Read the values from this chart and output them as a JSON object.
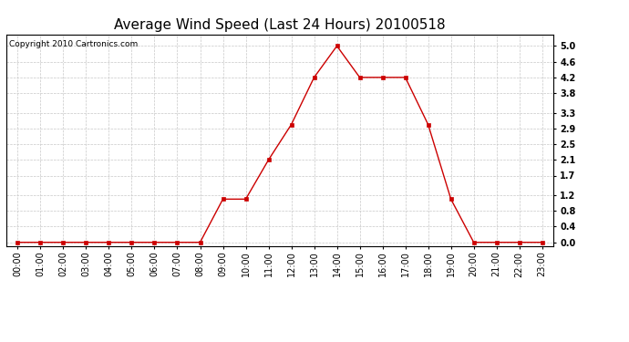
{
  "title": "Average Wind Speed (Last 24 Hours) 20100518",
  "copyright_text": "Copyright 2010 Cartronics.com",
  "hours": [
    "00:00",
    "01:00",
    "02:00",
    "03:00",
    "04:00",
    "05:00",
    "06:00",
    "07:00",
    "08:00",
    "09:00",
    "10:00",
    "11:00",
    "12:00",
    "13:00",
    "14:00",
    "15:00",
    "16:00",
    "17:00",
    "18:00",
    "19:00",
    "20:00",
    "21:00",
    "22:00",
    "23:00"
  ],
  "values": [
    0.0,
    0.0,
    0.0,
    0.0,
    0.0,
    0.0,
    0.0,
    0.0,
    0.0,
    1.1,
    1.1,
    2.1,
    3.0,
    4.2,
    5.0,
    4.2,
    4.2,
    4.2,
    3.0,
    1.1,
    0.0,
    0.0,
    0.0,
    0.0
  ],
  "line_color": "#cc0000",
  "marker": "s",
  "marker_size": 2.5,
  "bg_color": "#ffffff",
  "plot_bg_color": "#ffffff",
  "grid_color": "#c8c8c8",
  "yticks": [
    0.0,
    0.4,
    0.8,
    1.2,
    1.7,
    2.1,
    2.5,
    2.9,
    3.3,
    3.8,
    4.2,
    4.6,
    5.0
  ],
  "ylim": [
    -0.1,
    5.3
  ],
  "title_fontsize": 11,
  "copyright_fontsize": 6.5,
  "tick_fontsize": 7,
  "label_color": "#000000",
  "figsize": [
    6.9,
    3.75
  ],
  "dpi": 100
}
